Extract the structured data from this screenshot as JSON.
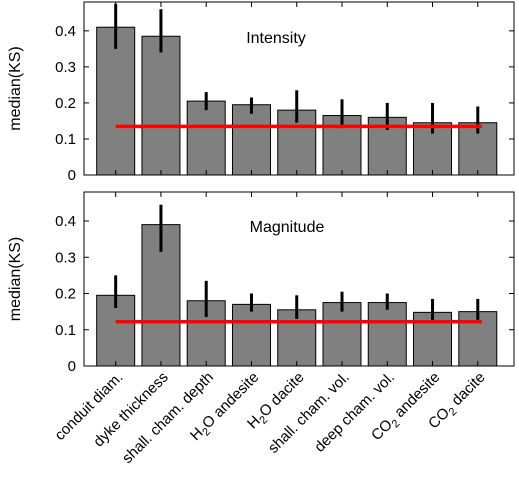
{
  "chart_data": [
    {
      "type": "bar",
      "title": "Intensity",
      "ylabel": "median(KS)",
      "ylim": [
        0,
        0.48
      ],
      "yticks": [
        "0",
        "0.1",
        "0.2",
        "0.3",
        "0.4"
      ],
      "categories": [
        "conduit diam.",
        "dyke thickness",
        "shall. cham. depth",
        "H2O andesite",
        "H2O dacite",
        "shall. cham. vol.",
        "deep cham. vol.",
        "CO2 andesite",
        "CO2 dacite"
      ],
      "values": [
        0.41,
        0.385,
        0.205,
        0.195,
        0.18,
        0.165,
        0.16,
        0.145,
        0.145
      ],
      "error_low": [
        0.35,
        0.34,
        0.18,
        0.17,
        0.145,
        0.13,
        0.125,
        0.115,
        0.115
      ],
      "error_high": [
        0.475,
        0.46,
        0.23,
        0.215,
        0.235,
        0.21,
        0.2,
        0.2,
        0.19
      ],
      "threshold": 0.135,
      "colors": {
        "bar": "#808080",
        "error": "#000000",
        "threshold": "#ff0000"
      },
      "grid": false,
      "legend": false
    },
    {
      "type": "bar",
      "title": "Magnitude",
      "ylabel": "median(KS)",
      "ylim": [
        0,
        0.48
      ],
      "yticks": [
        "0",
        "0.1",
        "0.2",
        "0.3",
        "0.4"
      ],
      "categories": [
        "conduit diam.",
        "dyke thickness",
        "shall. cham. depth",
        "H2O andesite",
        "H2O dacite",
        "shall. cham. vol.",
        "deep cham. vol.",
        "CO2 andesite",
        "CO2 dacite"
      ],
      "values": [
        0.195,
        0.39,
        0.18,
        0.17,
        0.155,
        0.175,
        0.175,
        0.148,
        0.15
      ],
      "error_low": [
        0.16,
        0.315,
        0.135,
        0.15,
        0.13,
        0.15,
        0.155,
        0.125,
        0.125
      ],
      "error_high": [
        0.25,
        0.445,
        0.235,
        0.2,
        0.195,
        0.205,
        0.2,
        0.185,
        0.185
      ],
      "threshold": 0.122,
      "colors": {
        "bar": "#808080",
        "error": "#000000",
        "threshold": "#ff0000"
      },
      "grid": false,
      "legend": false
    }
  ],
  "x_tick_labels": [
    {
      "main": "conduit diam.",
      "pre": "",
      "sub": "",
      "post": ""
    },
    {
      "main": "dyke thickness",
      "pre": "",
      "sub": "",
      "post": ""
    },
    {
      "main": "shall. cham. depth",
      "pre": "",
      "sub": "",
      "post": ""
    },
    {
      "main": "",
      "pre": "H",
      "sub": "2",
      "post": "O andesite"
    },
    {
      "main": "",
      "pre": "H",
      "sub": "2",
      "post": "O dacite"
    },
    {
      "main": "shall. cham. vol.",
      "pre": "",
      "sub": "",
      "post": ""
    },
    {
      "main": "deep cham. vol.",
      "pre": "",
      "sub": "",
      "post": ""
    },
    {
      "main": "",
      "pre": "CO",
      "sub": "2",
      "post": " andesite"
    },
    {
      "main": "",
      "pre": "CO",
      "sub": "2",
      "post": " dacite"
    }
  ]
}
